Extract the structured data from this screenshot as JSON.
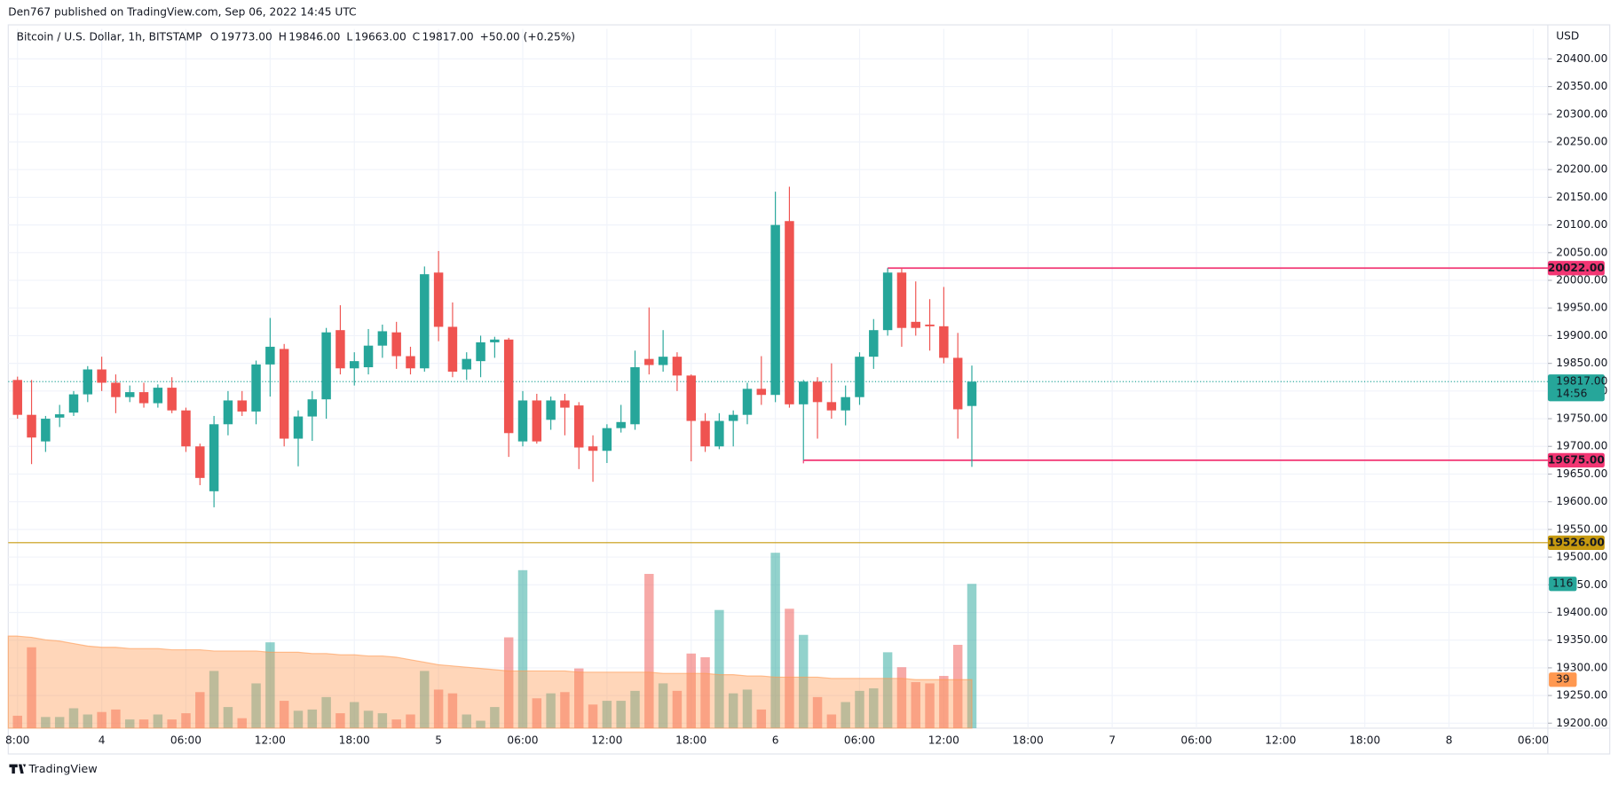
{
  "header": {
    "publisher": "Den767 published on TradingView.com, Sep 06, 2022 14:45 UTC",
    "logo": "TradingView"
  },
  "chart_data": {
    "type": "candlestick",
    "title": "Bitcoin / U.S. Dollar, 1h, BITSTAMP",
    "legend": [
      {
        "label": "O",
        "value": "19773.00"
      },
      {
        "label": "H",
        "value": "19846.00"
      },
      {
        "label": "L",
        "value": "19663.00"
      },
      {
        "label": "C",
        "value": "19817.00"
      }
    ],
    "change": "+50.00 (+0.25%)",
    "currency": "USD",
    "colors": {
      "up": "#26a69a",
      "down": "#ef5350"
    },
    "grid": true,
    "x": [
      0,
      1,
      2,
      3,
      4,
      5,
      6,
      7,
      8,
      9,
      10,
      11,
      12,
      13,
      14,
      15,
      16,
      17,
      18,
      19,
      20,
      21,
      22,
      23,
      24,
      25,
      26,
      27,
      28,
      29,
      30,
      31,
      32,
      33,
      34,
      35,
      36,
      37,
      38,
      39,
      40,
      41,
      42,
      43,
      44,
      45,
      46,
      47,
      48,
      49,
      50,
      51,
      52,
      53,
      54,
      55,
      56,
      57,
      58,
      59,
      60,
      61,
      62,
      63,
      64,
      65,
      66,
      67,
      68
    ],
    "open": [
      19820,
      19757,
      19709,
      19752,
      19761,
      19794,
      19839,
      19815,
      19789,
      19798,
      19778,
      19806,
      19765,
      19700,
      19619,
      19740,
      19783,
      19763,
      19848,
      19876,
      19714,
      19754,
      19785,
      19910,
      19841,
      19843,
      19882,
      19906,
      19863,
      19841,
      20014,
      19916,
      19839,
      19854,
      19888,
      19893,
      19709,
      19783,
      19748,
      19783,
      19774,
      19700,
      19692,
      19733,
      19740,
      19858,
      19847,
      19862,
      19828,
      19746,
      19700,
      19746,
      19757,
      19804,
      19793,
      20107,
      19776,
      19817,
      19780,
      19765,
      19789,
      19862,
      19910,
      20014,
      19925,
      19920,
      19917,
      19860,
      19773
    ],
    "high": [
      19826,
      19820,
      19755,
      19775,
      19800,
      19845,
      19862,
      19830,
      19810,
      19815,
      19812,
      19825,
      19770,
      19705,
      19755,
      19800,
      19800,
      19855,
      19932,
      19885,
      19765,
      19800,
      19914,
      19955,
      19870,
      19912,
      19920,
      19925,
      19880,
      20025,
      20053,
      19960,
      19870,
      19900,
      19898,
      19896,
      19800,
      19795,
      19790,
      19795,
      19780,
      19720,
      19740,
      19775,
      19873,
      19951,
      19910,
      19870,
      19830,
      19760,
      19760,
      19765,
      19815,
      19863,
      20160,
      20169,
      19820,
      19825,
      19850,
      19810,
      19870,
      19930,
      20022,
      20022,
      19998,
      19966,
      19988,
      19905,
      19846
    ],
    "low": [
      19750,
      19668,
      19690,
      19735,
      19755,
      19780,
      19800,
      19760,
      19780,
      19770,
      19770,
      19760,
      19690,
      19630,
      19590,
      19720,
      19755,
      19740,
      19790,
      19700,
      19664,
      19710,
      19750,
      19830,
      19810,
      19830,
      19860,
      19840,
      19830,
      19835,
      19890,
      19825,
      19820,
      19825,
      19860,
      19681,
      19700,
      19705,
      19730,
      19720,
      19659,
      19636,
      19670,
      19725,
      19730,
      19830,
      19835,
      19800,
      19673,
      19690,
      19695,
      19700,
      19740,
      19775,
      19780,
      19770,
      19675,
      19714,
      19750,
      19738,
      19775,
      19840,
      19900,
      19880,
      19900,
      19873,
      19850,
      19714,
      19663
    ],
    "close": [
      19757,
      19716,
      19750,
      19758,
      19794,
      19839,
      19815,
      19789,
      19798,
      19778,
      19806,
      19765,
      19700,
      19643,
      19740,
      19783,
      19763,
      19848,
      19880,
      19714,
      19754,
      19785,
      19906,
      19841,
      19854,
      19882,
      19908,
      19863,
      19841,
      20011,
      19916,
      19835,
      19858,
      19888,
      19893,
      19724,
      19783,
      19709,
      19783,
      19770,
      19698,
      19692,
      19733,
      19744,
      19843,
      19847,
      19862,
      19828,
      19746,
      19700,
      19746,
      19757,
      19804,
      19793,
      20100,
      19776,
      19817,
      19780,
      19765,
      19789,
      19862,
      19910,
      20014,
      19914,
      19914,
      19917,
      19860,
      19767,
      19817
    ],
    "volume": [
      10,
      65,
      9,
      9,
      16,
      11,
      13,
      15,
      7,
      7,
      11,
      7,
      12,
      29,
      46,
      17,
      8,
      36,
      69,
      22,
      14,
      15,
      25,
      12,
      21,
      14,
      12,
      7,
      11,
      46,
      31,
      28,
      11,
      6,
      17,
      73,
      127,
      24,
      28,
      29,
      48,
      19,
      22,
      22,
      30,
      124,
      36,
      30,
      60,
      57,
      95,
      28,
      31,
      15,
      141,
      96,
      75,
      25,
      11,
      21,
      30,
      32,
      61,
      49,
      37,
      36,
      42,
      67,
      116
    ],
    "volume_ma": [
      74,
      73,
      71,
      70,
      68,
      66,
      65,
      65,
      64,
      64,
      64,
      63,
      63,
      63,
      62,
      62,
      62,
      62,
      61,
      61,
      61,
      60,
      60,
      59,
      59,
      58,
      58,
      57,
      55,
      53,
      51,
      50,
      49,
      48,
      47,
      46,
      46,
      46,
      46,
      46,
      45,
      45,
      45,
      45,
      45,
      45,
      44,
      44,
      44,
      44,
      43,
      43,
      42,
      42,
      41,
      41,
      41,
      41,
      40,
      40,
      40,
      40,
      40,
      40,
      39,
      39,
      39,
      39,
      39
    ],
    "volume_lim": [
      0,
      562
    ],
    "xlim": [
      -0.66,
      109.04
    ],
    "xticks": [
      {
        "value": 0,
        "label": "8:00"
      },
      {
        "value": 6,
        "label": "4"
      },
      {
        "value": 12,
        "label": "06:00"
      },
      {
        "value": 18,
        "label": "12:00"
      },
      {
        "value": 24,
        "label": "18:00"
      },
      {
        "value": 30,
        "label": "5"
      },
      {
        "value": 36,
        "label": "06:00"
      },
      {
        "value": 42,
        "label": "12:00"
      },
      {
        "value": 48,
        "label": "18:00"
      },
      {
        "value": 54,
        "label": "6"
      },
      {
        "value": 60,
        "label": "06:00"
      },
      {
        "value": 66,
        "label": "12:00"
      },
      {
        "value": 72,
        "label": "18:00"
      },
      {
        "value": 78,
        "label": "7"
      },
      {
        "value": 84,
        "label": "06:00"
      },
      {
        "value": 90,
        "label": "12:00"
      },
      {
        "value": 96,
        "label": "18:00"
      },
      {
        "value": 102,
        "label": "8"
      },
      {
        "value": 108,
        "label": "06:00"
      }
    ],
    "ylim": [
      19191,
      20454
    ],
    "yticks": [
      {
        "value": 20400,
        "label": "20400.00"
      },
      {
        "value": 20350,
        "label": "20350.00"
      },
      {
        "value": 20300,
        "label": "20300.00"
      },
      {
        "value": 20250,
        "label": "20250.00"
      },
      {
        "value": 20200,
        "label": "20200.00"
      },
      {
        "value": 20150,
        "label": "20150.00"
      },
      {
        "value": 20100,
        "label": "20100.00"
      },
      {
        "value": 20050,
        "label": "20050.00"
      },
      {
        "value": 20000,
        "label": "20000.00"
      },
      {
        "value": 19950,
        "label": "19950.00"
      },
      {
        "value": 19900,
        "label": "19900.00"
      },
      {
        "value": 19850,
        "label": "19850.00"
      },
      {
        "value": 19800,
        "label": "19800.00"
      },
      {
        "value": 19750,
        "label": "19750.00"
      },
      {
        "value": 19700,
        "label": "19700.00"
      },
      {
        "value": 19650,
        "label": "19650.00"
      },
      {
        "value": 19600,
        "label": "19600.00"
      },
      {
        "value": 19550,
        "label": "19550.00"
      },
      {
        "value": 19500,
        "label": "19500.00"
      },
      {
        "value": 19450,
        "label": "19450.00"
      },
      {
        "value": 19400,
        "label": "19400.00"
      },
      {
        "value": 19350,
        "label": "19350.00"
      },
      {
        "value": 19300,
        "label": "19300.00"
      },
      {
        "value": 19250,
        "label": "19250.00"
      },
      {
        "value": 19200,
        "label": "19200.00"
      }
    ],
    "lines": [
      {
        "value": 20022,
        "label": "20022.00",
        "start": 62,
        "color": "#f23673"
      },
      {
        "value": 19675,
        "label": "19675.00",
        "start": 56,
        "color": "#f23673"
      },
      {
        "value": 19526,
        "label": "19526.00",
        "color": "#c79a0f"
      }
    ],
    "last_price": {
      "value": 19817,
      "label": "19817.00",
      "countdown": "14:56"
    }
  }
}
